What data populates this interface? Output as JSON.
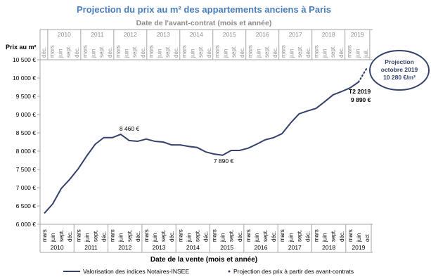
{
  "chart_data": {
    "type": "line",
    "title": "Projection du prix au m² des appartements anciens à Paris",
    "subtitle": "Date de l'avant-contrat (mois et année)",
    "y_label": "Prix au m²",
    "x_label": "Date de la vente (mois et année)",
    "ylim": [
      6000,
      10500
    ],
    "yticks": [
      {
        "value": 6000,
        "label": "6 000 €"
      },
      {
        "value": 6500,
        "label": "6 500 €"
      },
      {
        "value": 7000,
        "label": "7 000 €"
      },
      {
        "value": 7500,
        "label": "7 500 €"
      },
      {
        "value": 8000,
        "label": "8 000 €"
      },
      {
        "value": 8500,
        "label": "8 500 €"
      },
      {
        "value": 9000,
        "label": "9 000 €"
      },
      {
        "value": 9500,
        "label": "9 500 €"
      },
      {
        "value": 10000,
        "label": "10 000 €"
      },
      {
        "value": 10500,
        "label": "10 500 €"
      }
    ],
    "x_axis": {
      "groups": [
        {
          "label": "2010",
          "ticks": [
            "mars",
            "juin",
            "sept.",
            "déc."
          ]
        },
        {
          "label": "2011",
          "ticks": [
            "mars",
            "juin",
            "sept.",
            "déc."
          ]
        },
        {
          "label": "2012",
          "ticks": [
            "mars",
            "juin",
            "sept.",
            "déc."
          ]
        },
        {
          "label": "2013",
          "ticks": [
            "mars",
            "juin",
            "sept.",
            "déc."
          ]
        },
        {
          "label": "2014",
          "ticks": [
            "mars",
            "juin",
            "sept.",
            "déc."
          ]
        },
        {
          "label": "2015",
          "ticks": [
            "mars",
            "juin",
            "sept.",
            "déc."
          ]
        },
        {
          "label": "2016",
          "ticks": [
            "mars",
            "juin",
            "sept.",
            "déc."
          ]
        },
        {
          "label": "2017",
          "ticks": [
            "mars",
            "juin",
            "sept.",
            "déc."
          ]
        },
        {
          "label": "2018",
          "ticks": [
            "mars",
            "juin",
            "sept.",
            "déc."
          ]
        },
        {
          "label": "2019",
          "ticks": [
            "mars",
            "juin",
            "oct"
          ]
        }
      ]
    },
    "top_axis": {
      "groups": [
        {
          "ticks": [
            "déc."
          ]
        },
        {
          "label": "2010",
          "ticks": [
            "mars",
            "juin",
            "sept.",
            "déc."
          ]
        },
        {
          "label": "2011",
          "ticks": [
            "mars",
            "juin",
            "sept.",
            "déc."
          ]
        },
        {
          "label": "2012",
          "ticks": [
            "mars",
            "juin",
            "sept.",
            "déc."
          ]
        },
        {
          "label": "2013",
          "ticks": [
            "mars",
            "juin",
            "sept.",
            "déc."
          ]
        },
        {
          "label": "2014",
          "ticks": [
            "mars",
            "juin",
            "sept.",
            "déc."
          ]
        },
        {
          "label": "2015",
          "ticks": [
            "mars",
            "juin",
            "sept.",
            "déc."
          ]
        },
        {
          "label": "2016",
          "ticks": [
            "mars",
            "juin",
            "sept.",
            "déc."
          ]
        },
        {
          "label": "2017",
          "ticks": [
            "mars",
            "juin",
            "sept.",
            "déc."
          ]
        },
        {
          "label": "2018",
          "ticks": [
            "mars",
            "juin",
            "sept.",
            "déc."
          ]
        },
        {
          "label": "2019",
          "ticks": [
            "mars",
            "juin",
            "juil."
          ]
        }
      ]
    },
    "series": [
      {
        "name": "Valorisation des indices Notaires-INSEE",
        "color": "#34416b",
        "style": "solid",
        "values": [
          6300,
          6560,
          6980,
          7230,
          7520,
          7870,
          8190,
          8370,
          8370,
          8460,
          8290,
          8270,
          8330,
          8270,
          8250,
          8170,
          8170,
          8130,
          8100,
          7980,
          7920,
          7890,
          8020,
          8020,
          8080,
          8190,
          8310,
          8370,
          8480,
          8770,
          9020,
          9100,
          9170,
          9350,
          9540,
          9630,
          9730,
          9890,
          null
        ]
      },
      {
        "name": "Projection des prix à partir des avant-contrats",
        "color": "#34416b",
        "style": "dotted",
        "values": [
          null,
          null,
          null,
          null,
          null,
          null,
          null,
          null,
          null,
          null,
          null,
          null,
          null,
          null,
          null,
          null,
          null,
          null,
          null,
          null,
          null,
          null,
          null,
          null,
          null,
          null,
          null,
          null,
          null,
          null,
          null,
          null,
          null,
          null,
          null,
          null,
          null,
          9890,
          10280
        ]
      }
    ],
    "annotations": [
      "8 460 €",
      "7 890 €",
      "T2 2019",
      "9 890 €"
    ],
    "callout": [
      "Projection",
      "octobre 2019",
      "10 280 €/m²"
    ]
  }
}
